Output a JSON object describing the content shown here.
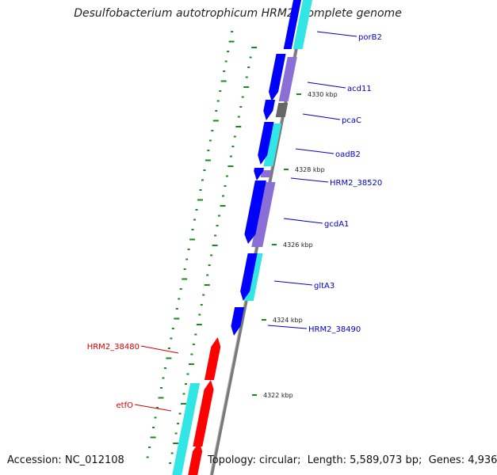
{
  "title": "Desulfobacterium autotrophicum HRM2, complete genome",
  "accession": {
    "label": "Accession:",
    "value": "NC_012108"
  },
  "topology": {
    "label": "Topology:",
    "value": "circular"
  },
  "length": {
    "label": "Length:",
    "value": "5,589,073 bp"
  },
  "genes": {
    "label": "Genes:",
    "value": "4,936"
  },
  "scale_ticks": [
    "4330 kbp",
    "4328 kbp",
    "4326 kbp",
    "4324 kbp",
    "4322 kbp"
  ],
  "gene_labels": [
    {
      "name": "porB2",
      "strand": "forward",
      "color": "#0000c8"
    },
    {
      "name": "acd11",
      "strand": "forward",
      "color": "#0000c8"
    },
    {
      "name": "pcaC",
      "strand": "forward",
      "color": "#0000c8"
    },
    {
      "name": "oadB2",
      "strand": "forward",
      "color": "#0000c8"
    },
    {
      "name": "HRM2_38520",
      "strand": "forward",
      "color": "#0000c8"
    },
    {
      "name": "gcdA1",
      "strand": "forward",
      "color": "#0000c8"
    },
    {
      "name": "gltA3",
      "strand": "forward",
      "color": "#0000c8"
    },
    {
      "name": "HRM2_38490",
      "strand": "forward",
      "color": "#0000c8"
    },
    {
      "name": "HRM2_38480",
      "strand": "reverse",
      "color": "#d40000"
    },
    {
      "name": "etfO",
      "strand": "reverse",
      "color": "#d40000"
    }
  ],
  "colors": {
    "forward_cds": "#0000ff",
    "reverse_cds": "#ff0000",
    "cog_cyan": "#33e6e6",
    "cog_purple": "#8a6fd6",
    "cog_gray": "#666666",
    "backbone": "#808080",
    "gc_ticks": "#1a8a1a"
  }
}
